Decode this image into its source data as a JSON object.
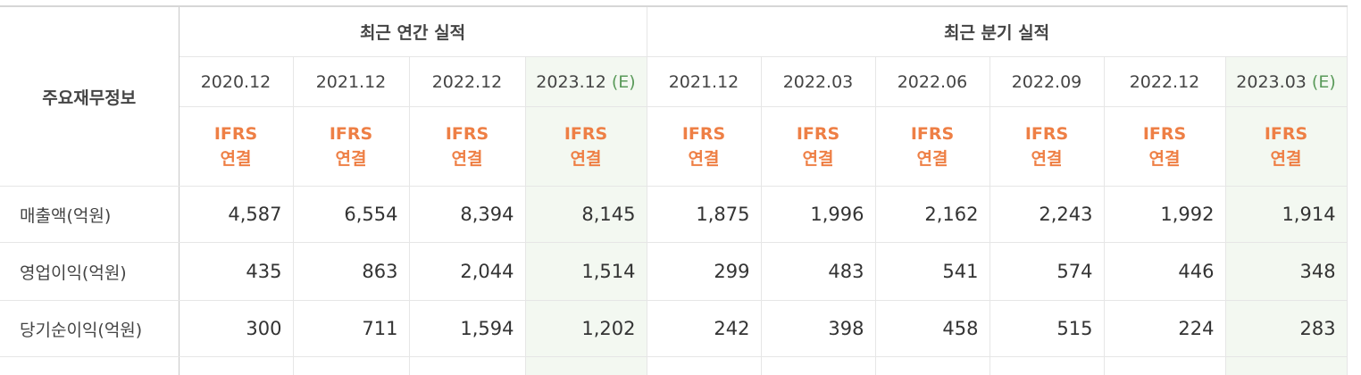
{
  "table": {
    "corner": "주요재무정보",
    "groups": [
      {
        "title": "최근 연간 실적",
        "span": 4
      },
      {
        "title": "최근 분기 실적",
        "span": 6
      }
    ],
    "periods": [
      {
        "date": "2020.12",
        "basis": "IFRS",
        "scope": "연결"
      },
      {
        "date": "2021.12",
        "basis": "IFRS",
        "scope": "연결"
      },
      {
        "date": "2022.12",
        "basis": "IFRS",
        "scope": "연결"
      },
      {
        "date": "2023.12",
        "estimate": "(E)",
        "basis": "IFRS",
        "scope": "연결"
      },
      {
        "date": "2021.12",
        "basis": "IFRS",
        "scope": "연결"
      },
      {
        "date": "2022.03",
        "basis": "IFRS",
        "scope": "연결"
      },
      {
        "date": "2022.06",
        "basis": "IFRS",
        "scope": "연결"
      },
      {
        "date": "2022.09",
        "basis": "IFRS",
        "scope": "연결"
      },
      {
        "date": "2022.12",
        "basis": "IFRS",
        "scope": "연결"
      },
      {
        "date": "2023.03",
        "estimate": "(E)",
        "basis": "IFRS",
        "scope": "연결"
      }
    ],
    "rows": [
      {
        "label": "매출액(억원)",
        "values": [
          "4,587",
          "6,554",
          "8,394",
          "8,145",
          "1,875",
          "1,996",
          "2,162",
          "2,243",
          "1,992",
          "1,914"
        ]
      },
      {
        "label": "영업이익(억원)",
        "values": [
          "435",
          "863",
          "2,044",
          "1,514",
          "299",
          "483",
          "541",
          "574",
          "446",
          "348"
        ]
      },
      {
        "label": "당기순이익(억원)",
        "values": [
          "300",
          "711",
          "1,594",
          "1,202",
          "242",
          "398",
          "458",
          "515",
          "224",
          "283"
        ]
      }
    ]
  }
}
